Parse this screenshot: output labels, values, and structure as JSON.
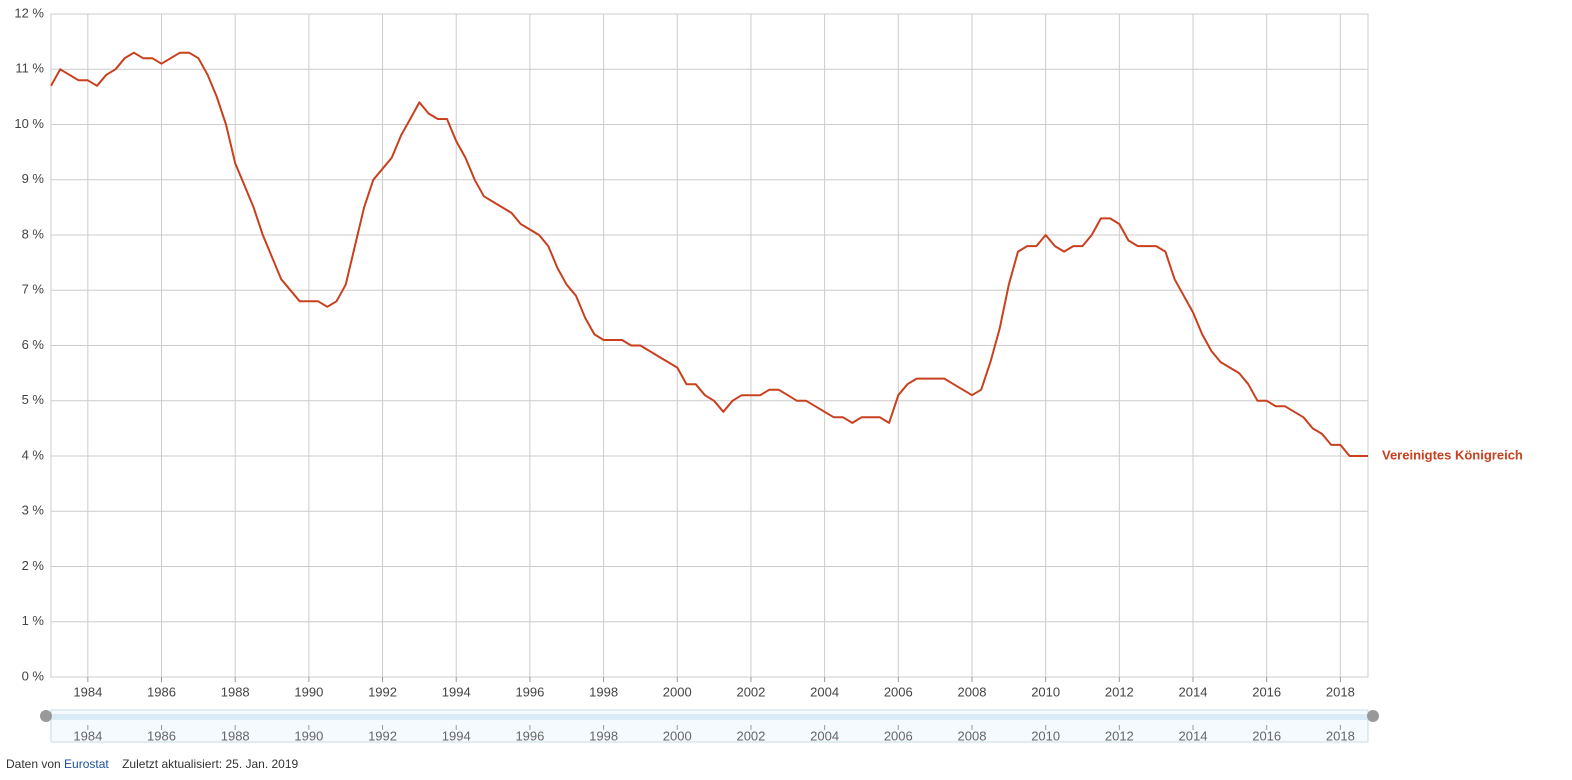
{
  "chart_data": {
    "type": "line",
    "x": [
      1983,
      1983.25,
      1983.5,
      1983.75,
      1984,
      1984.25,
      1984.5,
      1984.75,
      1985,
      1985.25,
      1985.5,
      1985.75,
      1986,
      1986.25,
      1986.5,
      1986.75,
      1987,
      1987.25,
      1987.5,
      1987.75,
      1988,
      1988.25,
      1988.5,
      1988.75,
      1989,
      1989.25,
      1989.5,
      1989.75,
      1990,
      1990.25,
      1990.5,
      1990.75,
      1991,
      1991.25,
      1991.5,
      1991.75,
      1992,
      1992.25,
      1992.5,
      1992.75,
      1993,
      1993.25,
      1993.5,
      1993.75,
      1994,
      1994.25,
      1994.5,
      1994.75,
      1995,
      1995.25,
      1995.5,
      1995.75,
      1996,
      1996.25,
      1996.5,
      1996.75,
      1997,
      1997.25,
      1997.5,
      1997.75,
      1998,
      1998.25,
      1998.5,
      1998.75,
      1999,
      1999.25,
      1999.5,
      1999.75,
      2000,
      2000.25,
      2000.5,
      2000.75,
      2001,
      2001.25,
      2001.5,
      2001.75,
      2002,
      2002.25,
      2002.5,
      2002.75,
      2003,
      2003.25,
      2003.5,
      2003.75,
      2004,
      2004.25,
      2004.5,
      2004.75,
      2005,
      2005.25,
      2005.5,
      2005.75,
      2006,
      2006.25,
      2006.5,
      2006.75,
      2007,
      2007.25,
      2007.5,
      2007.75,
      2008,
      2008.25,
      2008.5,
      2008.75,
      2009,
      2009.25,
      2009.5,
      2009.75,
      2010,
      2010.25,
      2010.5,
      2010.75,
      2011,
      2011.25,
      2011.5,
      2011.75,
      2012,
      2012.25,
      2012.5,
      2012.75,
      2013,
      2013.25,
      2013.5,
      2013.75,
      2014,
      2014.25,
      2014.5,
      2014.75,
      2015,
      2015.25,
      2015.5,
      2015.75,
      2016,
      2016.25,
      2016.5,
      2016.75,
      2017,
      2017.25,
      2017.5,
      2017.75,
      2018,
      2018.25,
      2018.5,
      2018.75
    ],
    "series": [
      {
        "name": "Vereinigtes Königreich",
        "color": "#c8401e",
        "values": [
          10.7,
          11.0,
          10.9,
          10.8,
          10.8,
          10.7,
          10.9,
          11.0,
          11.2,
          11.3,
          11.2,
          11.2,
          11.1,
          11.2,
          11.3,
          11.3,
          11.2,
          10.9,
          10.5,
          10.0,
          9.3,
          8.9,
          8.5,
          8.0,
          7.6,
          7.2,
          7.0,
          6.8,
          6.8,
          6.8,
          6.7,
          6.8,
          7.1,
          7.8,
          8.5,
          9.0,
          9.2,
          9.4,
          9.8,
          10.1,
          10.4,
          10.2,
          10.1,
          10.1,
          9.7,
          9.4,
          9.0,
          8.7,
          8.6,
          8.5,
          8.4,
          8.2,
          8.1,
          8.0,
          7.8,
          7.4,
          7.1,
          6.9,
          6.5,
          6.2,
          6.1,
          6.1,
          6.1,
          6.0,
          6.0,
          5.9,
          5.8,
          5.7,
          5.6,
          5.3,
          5.3,
          5.1,
          5.0,
          4.8,
          5.0,
          5.1,
          5.1,
          5.1,
          5.2,
          5.2,
          5.1,
          5.0,
          5.0,
          4.9,
          4.8,
          4.7,
          4.7,
          4.6,
          4.7,
          4.7,
          4.7,
          4.6,
          5.1,
          5.3,
          5.4,
          5.4,
          5.4,
          5.4,
          5.3,
          5.2,
          5.1,
          5.2,
          5.7,
          6.3,
          7.1,
          7.7,
          7.8,
          7.8,
          8.0,
          7.8,
          7.7,
          7.8,
          7.8,
          8.0,
          8.3,
          8.3,
          8.2,
          7.9,
          7.8,
          7.8,
          7.8,
          7.7,
          7.2,
          6.9,
          6.6,
          6.2,
          5.9,
          5.7,
          5.6,
          5.5,
          5.3,
          5.0,
          5.0,
          4.9,
          4.9,
          4.8,
          4.7,
          4.5,
          4.4,
          4.2,
          4.2,
          4.0,
          4.0,
          4.0
        ]
      }
    ],
    "xlim": [
      1983,
      2018.75
    ],
    "xticks": [
      1984,
      1986,
      1988,
      1990,
      1992,
      1994,
      1996,
      1998,
      2000,
      2002,
      2004,
      2006,
      2008,
      2010,
      2012,
      2014,
      2016,
      2018
    ],
    "ylim": [
      0,
      12
    ],
    "yticks": [
      {
        "value": 0,
        "label": "0 %"
      },
      {
        "value": 1,
        "label": "1 %"
      },
      {
        "value": 2,
        "label": "2 %"
      },
      {
        "value": 3,
        "label": "3 %"
      },
      {
        "value": 4,
        "label": "4 %"
      },
      {
        "value": 5,
        "label": "5 %"
      },
      {
        "value": 6,
        "label": "6 %"
      },
      {
        "value": 7,
        "label": "7 %"
      },
      {
        "value": 8,
        "label": "8 %"
      },
      {
        "value": 9,
        "label": "9 %"
      },
      {
        "value": 10,
        "label": "10 %"
      },
      {
        "value": 11,
        "label": "11 %"
      },
      {
        "value": 12,
        "label": "12 %"
      }
    ],
    "grid": true
  },
  "footer": {
    "source_prefix": "Daten von",
    "source": "Eurostat",
    "updated": "Zuletzt aktualisiert: 25. Jan. 2019"
  }
}
